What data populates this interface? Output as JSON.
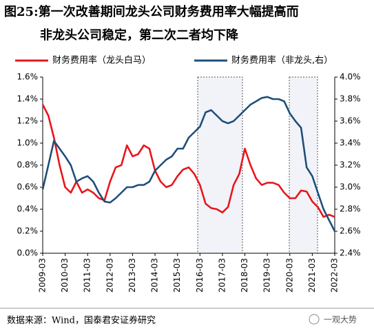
{
  "chart_data": {
    "type": "line",
    "title": [
      "图25:第一次改善期间龙头公司财务费用率大幅提高而",
      "非龙头公司稳定，第二次二者均下降"
    ],
    "source": "数据来源：Wind，国泰君安证券研究",
    "watermark": "一观大势",
    "categories": [
      "2009-03",
      null,
      null,
      null,
      "2010-03",
      null,
      null,
      null,
      "2011-03",
      null,
      null,
      null,
      "2012-03",
      null,
      null,
      null,
      "2013-03",
      null,
      null,
      null,
      "2014-03",
      null,
      null,
      null,
      "2015-03",
      null,
      null,
      null,
      "2016-03",
      null,
      null,
      null,
      "2017-03",
      null,
      null,
      null,
      "2018-03",
      null,
      null,
      null,
      "2019-03",
      null,
      null,
      null,
      "2020-03",
      null,
      null,
      null,
      "2021-03",
      null,
      null,
      null,
      "2022-03"
    ],
    "series": [
      {
        "name": "财务费用率（龙头白马）",
        "color": "#e8151b",
        "values": [
          1.35,
          1.25,
          1.05,
          0.8,
          0.6,
          0.55,
          0.65,
          0.55,
          0.58,
          0.55,
          0.5,
          0.48,
          0.65,
          0.78,
          0.8,
          0.98,
          0.88,
          0.9,
          0.98,
          0.95,
          0.75,
          0.65,
          0.6,
          0.62,
          0.7,
          0.76,
          0.78,
          0.72,
          0.62,
          0.45,
          0.41,
          0.4,
          0.37,
          0.42,
          0.62,
          0.72,
          0.95,
          0.8,
          0.68,
          0.62,
          0.64,
          0.64,
          0.62,
          0.55,
          0.5,
          0.5,
          0.57,
          0.56,
          0.47,
          0.42,
          0.33,
          0.35,
          0.33
        ]
      },
      {
        "name": "财务费用率（非龙头,右）",
        "color": "#1f4e79",
        "axis": "y2",
        "values": [
          2.98,
          3.2,
          3.42,
          3.35,
          3.28,
          3.2,
          3.05,
          3.08,
          3.1,
          3.05,
          2.95,
          2.87,
          2.86,
          2.9,
          2.95,
          3.0,
          3.0,
          3.02,
          3.02,
          3.05,
          3.15,
          3.2,
          3.25,
          3.28,
          3.35,
          3.35,
          3.45,
          3.5,
          3.55,
          3.68,
          3.7,
          3.65,
          3.6,
          3.58,
          3.6,
          3.65,
          3.7,
          3.75,
          3.78,
          3.81,
          3.82,
          3.8,
          3.8,
          3.78,
          3.67,
          3.6,
          3.54,
          3.18,
          3.1,
          2.95,
          2.8,
          2.7,
          2.6
        ]
      }
    ],
    "ylim": [
      0,
      1.6
    ],
    "yticks": [
      {
        "value": 0,
        "label": "0.0%"
      },
      {
        "value": 0.2,
        "label": "0.2%"
      },
      {
        "value": 0.4,
        "label": "0.4%"
      },
      {
        "value": 0.6,
        "label": "0.6%"
      },
      {
        "value": 0.8,
        "label": "0.8%"
      },
      {
        "value": 1.0,
        "label": "1.0%"
      },
      {
        "value": 1.2,
        "label": "1.2%"
      },
      {
        "value": 1.4,
        "label": "1.4%"
      },
      {
        "value": 1.6,
        "label": "1.6%"
      }
    ],
    "y2lim": [
      2.4,
      4.0
    ],
    "y2ticks": [
      {
        "value": 2.4,
        "label": "2.4%"
      },
      {
        "value": 2.6,
        "label": "2.6%"
      },
      {
        "value": 2.8,
        "label": "2.8%"
      },
      {
        "value": 3.0,
        "label": "3.0%"
      },
      {
        "value": 3.2,
        "label": "3.2%"
      },
      {
        "value": 3.4,
        "label": "3.4%"
      },
      {
        "value": 3.6,
        "label": "3.6%"
      },
      {
        "value": 3.8,
        "label": "3.8%"
      },
      {
        "value": 4.0,
        "label": "4.0%"
      }
    ],
    "grid": false
  }
}
